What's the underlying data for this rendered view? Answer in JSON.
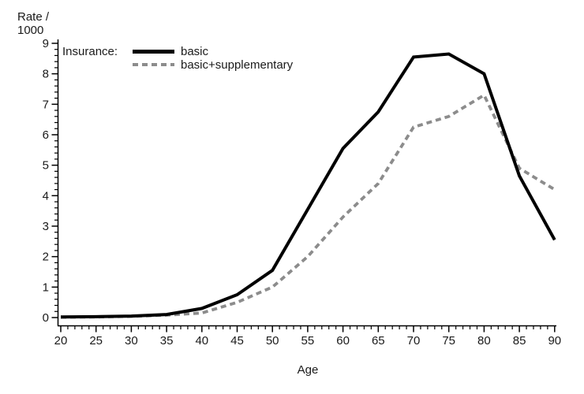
{
  "chart_data": {
    "type": "line",
    "title": "",
    "xlabel": "Age",
    "ylabel": "Rate / 1000",
    "ylabel_display": "Rate /\n1000",
    "legend_title": "Insurance:",
    "legend_position": "top-left-inside",
    "grid": false,
    "background_color": "#ffffff",
    "text_color": "#1a1a1a",
    "axis_color": "#000000",
    "x": [
      20,
      25,
      30,
      35,
      40,
      45,
      50,
      55,
      60,
      65,
      70,
      75,
      80,
      85,
      90
    ],
    "series": [
      {
        "name": "basic",
        "line_style": "solid",
        "color": "#000000",
        "values": [
          0.02,
          0.03,
          0.05,
          0.1,
          0.3,
          0.75,
          1.55,
          3.55,
          5.55,
          6.75,
          8.55,
          8.65,
          8.0,
          4.65,
          2.55
        ]
      },
      {
        "name": "basic+supplementary",
        "line_style": "dashed",
        "color": "#8c8c8c",
        "values": [
          0.01,
          0.02,
          0.04,
          0.08,
          0.15,
          0.5,
          1.0,
          2.0,
          3.3,
          4.4,
          6.25,
          6.6,
          7.3,
          4.9,
          4.2
        ]
      }
    ],
    "xlim": [
      20,
      90
    ],
    "ylim": [
      0,
      9
    ],
    "x_tick_labels": [
      "20",
      "25",
      "30",
      "35",
      "40",
      "45",
      "50",
      "55",
      "60",
      "65",
      "70",
      "75",
      "80",
      "85",
      "90"
    ],
    "y_tick_labels": [
      "0",
      "1",
      "2",
      "3",
      "4",
      "5",
      "6",
      "7",
      "8",
      "9"
    ],
    "x_major_step": 5,
    "x_minor_step": 1,
    "y_major_step": 1,
    "y_minor_step": 0.2
  }
}
